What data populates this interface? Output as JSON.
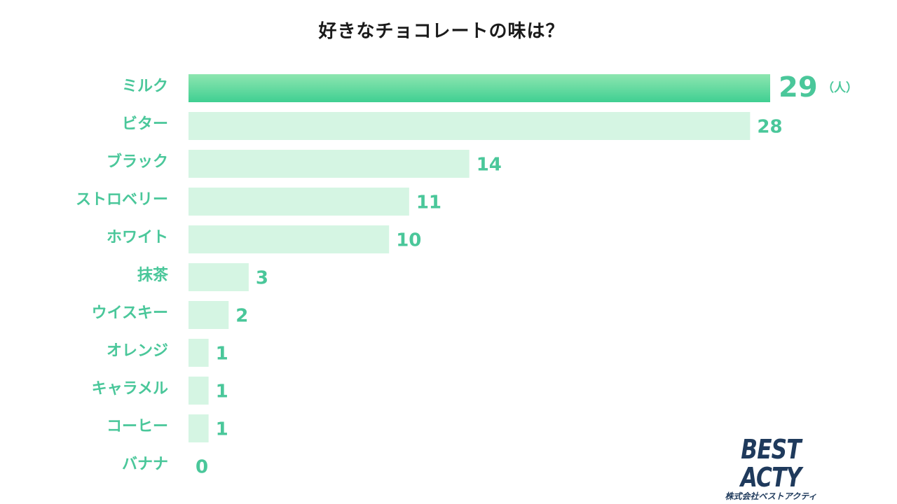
{
  "chart_data": {
    "type": "bar",
    "orientation": "horizontal",
    "title": "好きなチョコレートの味は？",
    "categories": [
      "ミルク",
      "ビター",
      "ブラック",
      "ストロベリー",
      "ホワイト",
      "抹茶",
      "ウイスキー",
      "オレンジ",
      "キャラメル",
      "コーヒー",
      "バナナ"
    ],
    "values": [
      29,
      28,
      14,
      11,
      10,
      3,
      2,
      1,
      1,
      1,
      0
    ],
    "unit": "（人）",
    "xlim": [
      0,
      29
    ],
    "grid": false,
    "legend": "none",
    "colors": {
      "highlight_bar_top": "#8ee6b0",
      "highlight_bar_bottom": "#3fcf92",
      "bar": "#d5f5e3",
      "label": "#4ac79a"
    }
  },
  "logo": {
    "main": "BEST ACTY",
    "sub": "株式会社ベストアクティ"
  }
}
